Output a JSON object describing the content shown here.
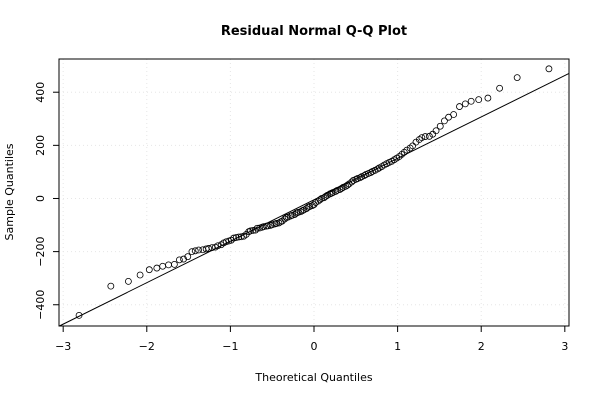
{
  "chart_data": {
    "type": "scatter",
    "title": "Residual Normal Q-Q Plot",
    "xlabel": "Theoretical Quantiles",
    "ylabel": "Sample Quantiles",
    "xlim": [
      -3.05,
      3.05
    ],
    "ylim": [
      -480,
      525
    ],
    "x_ticks": [
      -3,
      -2,
      -1,
      0,
      1,
      2,
      3
    ],
    "x_tick_labels": [
      "−3",
      "−2",
      "−1",
      "0",
      "1",
      "2",
      "3"
    ],
    "y_ticks": [
      -400,
      -200,
      0,
      200,
      400
    ],
    "y_tick_labels": [
      "−400",
      "−200",
      "0",
      "200",
      "400"
    ],
    "grid": true,
    "reference_line": {
      "slope": 156,
      "intercept": -5
    },
    "series": [
      {
        "marker": "open-circle",
        "points": [
          [
            -2.81,
            -440
          ],
          [
            -2.43,
            -330
          ],
          [
            -2.22,
            -312
          ],
          [
            -2.08,
            -288
          ],
          [
            -1.97,
            -268
          ],
          [
            -1.88,
            -262
          ],
          [
            -1.81,
            -255
          ],
          [
            -1.74,
            -250
          ],
          [
            -1.67,
            -248
          ],
          [
            -1.61,
            -231
          ],
          [
            -1.56,
            -228
          ],
          [
            -1.51,
            -219
          ],
          [
            -1.46,
            -200
          ],
          [
            -1.42,
            -197
          ],
          [
            -1.38,
            -194
          ],
          [
            -1.33,
            -193
          ],
          [
            -1.29,
            -190
          ],
          [
            -1.26,
            -188
          ],
          [
            -1.22,
            -185
          ],
          [
            -1.18,
            -183
          ],
          [
            -1.15,
            -178
          ],
          [
            -1.11,
            -174
          ],
          [
            -1.08,
            -167
          ],
          [
            -1.05,
            -163
          ],
          [
            -1.02,
            -160
          ],
          [
            -0.99,
            -157
          ],
          [
            -0.96,
            -149
          ],
          [
            -0.93,
            -147
          ],
          [
            -0.9,
            -145
          ],
          [
            -0.87,
            -144
          ],
          [
            -0.84,
            -142
          ],
          [
            -0.81,
            -135
          ],
          [
            -0.78,
            -125
          ],
          [
            -0.76,
            -122
          ],
          [
            -0.73,
            -120
          ],
          [
            -0.7,
            -119
          ],
          [
            -0.68,
            -112
          ],
          [
            -0.65,
            -111
          ],
          [
            -0.62,
            -108
          ],
          [
            -0.6,
            -106
          ],
          [
            -0.57,
            -104
          ],
          [
            -0.55,
            -103
          ],
          [
            -0.52,
            -101
          ],
          [
            -0.5,
            -99
          ],
          [
            -0.47,
            -96
          ],
          [
            -0.45,
            -94
          ],
          [
            -0.42,
            -92
          ],
          [
            -0.4,
            -88
          ],
          [
            -0.38,
            -85
          ],
          [
            -0.35,
            -77
          ],
          [
            -0.33,
            -72
          ],
          [
            -0.31,
            -70
          ],
          [
            -0.28,
            -66
          ],
          [
            -0.26,
            -63
          ],
          [
            -0.23,
            -60
          ],
          [
            -0.21,
            -55
          ],
          [
            -0.19,
            -52
          ],
          [
            -0.16,
            -50
          ],
          [
            -0.14,
            -46
          ],
          [
            -0.12,
            -43
          ],
          [
            -0.09,
            -38
          ],
          [
            -0.07,
            -33
          ],
          [
            -0.05,
            -30
          ],
          [
            -0.02,
            -27
          ],
          [
            0.0,
            -23
          ],
          [
            0.02,
            -15
          ],
          [
            0.05,
            -10
          ],
          [
            0.07,
            -5
          ],
          [
            0.09,
            0
          ],
          [
            0.12,
            3
          ],
          [
            0.14,
            8
          ],
          [
            0.16,
            12
          ],
          [
            0.19,
            17
          ],
          [
            0.21,
            20
          ],
          [
            0.23,
            23
          ],
          [
            0.26,
            27
          ],
          [
            0.28,
            31
          ],
          [
            0.31,
            34
          ],
          [
            0.33,
            38
          ],
          [
            0.35,
            42
          ],
          [
            0.38,
            46
          ],
          [
            0.4,
            50
          ],
          [
            0.42,
            55
          ],
          [
            0.45,
            62
          ],
          [
            0.47,
            68
          ],
          [
            0.5,
            72
          ],
          [
            0.52,
            75
          ],
          [
            0.55,
            78
          ],
          [
            0.57,
            82
          ],
          [
            0.6,
            86
          ],
          [
            0.62,
            90
          ],
          [
            0.65,
            94
          ],
          [
            0.68,
            98
          ],
          [
            0.7,
            102
          ],
          [
            0.73,
            106
          ],
          [
            0.76,
            111
          ],
          [
            0.78,
            115
          ],
          [
            0.81,
            120
          ],
          [
            0.84,
            126
          ],
          [
            0.87,
            131
          ],
          [
            0.9,
            136
          ],
          [
            0.93,
            140
          ],
          [
            0.96,
            146
          ],
          [
            0.99,
            152
          ],
          [
            1.02,
            158
          ],
          [
            1.05,
            166
          ],
          [
            1.08,
            174
          ],
          [
            1.11,
            182
          ],
          [
            1.15,
            190
          ],
          [
            1.18,
            198
          ],
          [
            1.22,
            212
          ],
          [
            1.26,
            222
          ],
          [
            1.29,
            229
          ],
          [
            1.33,
            233
          ],
          [
            1.38,
            234
          ],
          [
            1.42,
            242
          ],
          [
            1.46,
            255
          ],
          [
            1.51,
            272
          ],
          [
            1.56,
            292
          ],
          [
            1.61,
            306
          ],
          [
            1.67,
            316
          ],
          [
            1.74,
            346
          ],
          [
            1.81,
            356
          ],
          [
            1.88,
            366
          ],
          [
            1.97,
            372
          ],
          [
            2.08,
            378
          ],
          [
            2.22,
            415
          ],
          [
            2.43,
            455
          ],
          [
            2.81,
            488
          ]
        ]
      }
    ]
  }
}
